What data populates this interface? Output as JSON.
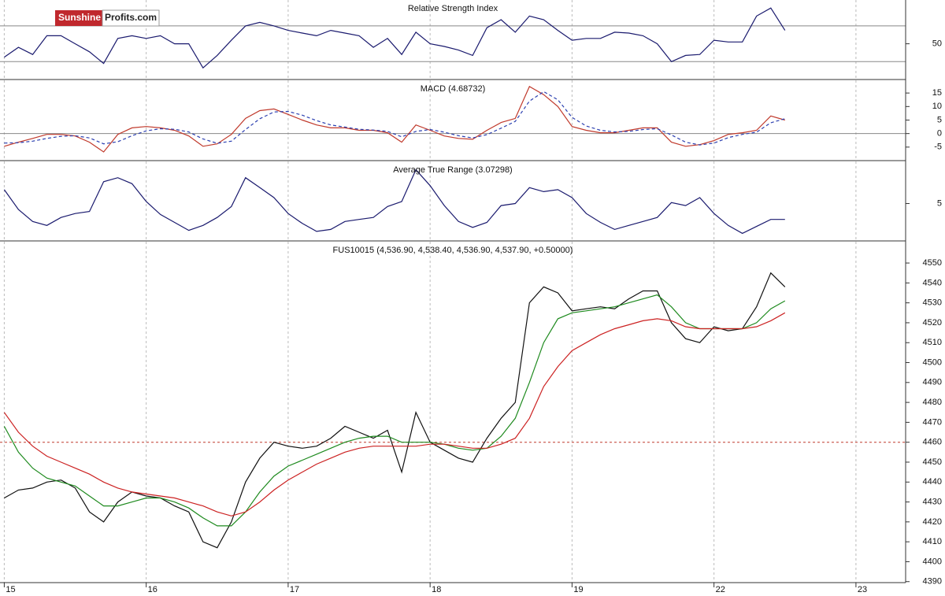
{
  "logo": {
    "part1": "Sunshine",
    "part2": "Profits.com"
  },
  "chart_data": [
    {
      "type": "line",
      "title": "Relative Strength Index",
      "x": [
        0,
        0.1,
        0.2,
        0.3,
        0.4,
        0.5,
        0.6,
        0.7,
        0.8,
        0.9,
        1,
        1.1,
        1.2,
        1.3,
        1.4,
        1.5,
        1.6,
        1.7,
        1.8,
        1.9,
        2,
        2.1,
        2.2,
        2.3,
        2.4,
        2.5,
        2.6,
        2.7,
        2.8,
        2.9,
        3,
        3.1,
        3.2,
        3.3,
        3.4,
        3.5,
        3.6,
        3.7,
        3.8,
        3.9,
        4,
        4.1,
        4.2,
        4.3,
        4.4,
        4.5,
        4.6,
        4.7,
        4.8,
        4.9,
        5,
        5.1,
        5.2,
        5.3,
        5.4,
        5.5
      ],
      "xlim": [
        -0.03,
        6.35
      ],
      "ylim": [
        10,
        99
      ],
      "yticks": [
        50
      ],
      "hlines": [
        30,
        70
      ],
      "hline_color": "#888888",
      "series": [
        {
          "color": "#1a1a6e",
          "values": [
            35,
            46,
            38,
            59,
            59,
            50,
            41,
            28,
            56,
            59,
            56,
            59,
            50,
            50,
            23,
            37,
            54,
            70,
            74,
            70,
            65,
            62,
            59,
            65,
            62,
            59,
            46,
            56,
            38,
            63,
            50,
            47,
            43,
            37,
            68,
            77,
            63,
            81,
            77,
            65,
            54,
            56,
            56,
            63,
            62,
            59,
            50,
            30,
            37,
            38,
            54,
            52,
            52,
            81,
            90,
            65
          ]
        }
      ]
    },
    {
      "type": "line",
      "title": "MACD (4.68732)",
      "x": [
        0,
        0.1,
        0.2,
        0.3,
        0.4,
        0.5,
        0.6,
        0.7,
        0.8,
        0.9,
        1,
        1.1,
        1.2,
        1.3,
        1.4,
        1.5,
        1.6,
        1.7,
        1.8,
        1.9,
        2,
        2.1,
        2.2,
        2.3,
        2.4,
        2.5,
        2.6,
        2.7,
        2.8,
        2.9,
        3,
        3.1,
        3.2,
        3.3,
        3.4,
        3.5,
        3.6,
        3.7,
        3.8,
        3.9,
        4,
        4.1,
        4.2,
        4.3,
        4.4,
        4.5,
        4.6,
        4.7,
        4.8,
        4.9,
        5,
        5.1,
        5.2,
        5.3,
        5.4,
        5.5
      ],
      "xlim": [
        -0.03,
        6.35
      ],
      "ylim": [
        -10,
        19.7
      ],
      "yticks": [
        -5,
        0,
        5,
        10,
        15
      ],
      "hlines": [
        0
      ],
      "hline_color": "#888888",
      "series": [
        {
          "color": "#c0392b",
          "values": [
            -4.7,
            -3.2,
            -1.8,
            -0.3,
            -0.3,
            -0.9,
            -3.2,
            -6.8,
            -0.3,
            2.1,
            2.6,
            2.1,
            1.2,
            -0.9,
            -4.7,
            -3.8,
            -0.3,
            5.6,
            8.5,
            9.1,
            7.1,
            5,
            3.2,
            2.1,
            2.1,
            1.2,
            1.2,
            0.3,
            -3.2,
            3.2,
            1.2,
            -0.9,
            -1.8,
            -2.1,
            1.2,
            4.1,
            5.6,
            17.4,
            14.4,
            10,
            2.6,
            1.2,
            0.3,
            0.3,
            1.2,
            2.1,
            2.1,
            -3.2,
            -4.7,
            -4.1,
            -2.6,
            -0.3,
            0.3,
            1.2,
            6.5,
            5
          ]
        },
        {
          "color": "#2b3fb0",
          "dash": true,
          "values": [
            -3.5,
            -3.4,
            -2.8,
            -1.8,
            -1,
            -0.8,
            -1.6,
            -3.8,
            -3,
            -0.8,
            1,
            1.8,
            1.6,
            0.6,
            -2,
            -3.6,
            -2.8,
            1.5,
            5.5,
            8,
            8.2,
            6.8,
            4.8,
            3.2,
            2.4,
            1.6,
            1.3,
            0.8,
            -1.2,
            0.8,
            1.5,
            0.5,
            -0.8,
            -1.6,
            -0.4,
            2,
            4.5,
            12,
            15.5,
            12.5,
            6,
            2.8,
            1.2,
            0.6,
            0.8,
            1.5,
            1.8,
            -0.5,
            -3.2,
            -4.2,
            -3.5,
            -1.5,
            -0.3,
            0.5,
            4,
            5.5
          ]
        }
      ]
    },
    {
      "type": "line",
      "title": "Average True Range (3.07298)",
      "x": [
        0,
        0.1,
        0.2,
        0.3,
        0.4,
        0.5,
        0.6,
        0.7,
        0.8,
        0.9,
        1,
        1.1,
        1.2,
        1.3,
        1.4,
        1.5,
        1.6,
        1.7,
        1.8,
        1.9,
        2,
        2.1,
        2.2,
        2.3,
        2.4,
        2.5,
        2.6,
        2.7,
        2.8,
        2.9,
        3,
        3.1,
        3.2,
        3.3,
        3.4,
        3.5,
        3.6,
        3.7,
        3.8,
        3.9,
        4,
        4.1,
        4.2,
        4.3,
        4.4,
        4.5,
        4.6,
        4.7,
        4.8,
        4.9,
        5,
        5.1,
        5.2,
        5.3,
        5.4,
        5.5
      ],
      "xlim": [
        -0.03,
        6.35
      ],
      "ylim": [
        1.24,
        9.24
      ],
      "yticks": [
        5
      ],
      "series": [
        {
          "color": "#1a1a6e",
          "values": [
            6.4,
            4.4,
            3.2,
            2.8,
            3.6,
            4,
            4.2,
            7.2,
            7.6,
            7,
            5.2,
            3.9,
            3.1,
            2.3,
            2.8,
            3.6,
            4.7,
            7.6,
            6.6,
            5.6,
            4,
            3,
            2.2,
            2.4,
            3.2,
            3.4,
            3.6,
            4.7,
            5.2,
            8.4,
            6.8,
            4.8,
            3.2,
            2.6,
            3.1,
            4.8,
            5,
            6.6,
            6.2,
            6.4,
            5.6,
            4,
            3.1,
            2.4,
            2.8,
            3.2,
            3.6,
            5.1,
            4.8,
            5.6,
            4,
            2.8,
            2,
            2.7,
            3.4,
            3.4
          ]
        }
      ]
    },
    {
      "type": "line",
      "title": "FUS10015 (4,536.90, 4,538.40, 4,536.90, 4,537.90, +0.50000)",
      "x": [
        0,
        0.1,
        0.2,
        0.3,
        0.4,
        0.5,
        0.6,
        0.7,
        0.8,
        0.9,
        1,
        1.1,
        1.2,
        1.3,
        1.4,
        1.5,
        1.6,
        1.7,
        1.8,
        1.9,
        2,
        2.1,
        2.2,
        2.3,
        2.4,
        2.5,
        2.6,
        2.7,
        2.8,
        2.9,
        3,
        3.1,
        3.2,
        3.3,
        3.4,
        3.5,
        3.6,
        3.7,
        3.8,
        3.9,
        4,
        4.1,
        4.2,
        4.3,
        4.4,
        4.5,
        4.6,
        4.7,
        4.8,
        4.9,
        5,
        5.1,
        5.2,
        5.3,
        5.4,
        5.5
      ],
      "xlim": [
        -0.03,
        6.35
      ],
      "xticks": [
        {
          "value": 0,
          "label": "15"
        },
        {
          "value": 1,
          "label": "16"
        },
        {
          "value": 2,
          "label": "17"
        },
        {
          "value": 3,
          "label": "18"
        },
        {
          "value": 4,
          "label": "19"
        },
        {
          "value": 5,
          "label": "22"
        },
        {
          "value": 6,
          "label": "23"
        }
      ],
      "ylim": [
        4389.5,
        4560.7
      ],
      "yticks": [
        4390,
        4400,
        4410,
        4420,
        4430,
        4440,
        4450,
        4460,
        4470,
        4480,
        4490,
        4500,
        4510,
        4520,
        4530,
        4540,
        4550
      ],
      "hlines": [
        4460
      ],
      "hline_color": "#c0392b",
      "hline_dash": true,
      "series": [
        {
          "color": "#111111",
          "values": [
            4432,
            4436,
            4437,
            4440,
            4441,
            4437,
            4425,
            4420,
            4430,
            4435,
            4433,
            4432,
            4428,
            4425,
            4410,
            4407,
            4420,
            4440,
            4452,
            4460,
            4458,
            4457,
            4458,
            4462,
            4468,
            4465,
            4462,
            4466,
            4445,
            4475,
            4460,
            4456,
            4452,
            4450,
            4462,
            4472,
            4480,
            4530,
            4538,
            4535,
            4526,
            4527,
            4528,
            4527,
            4532,
            4536,
            4536,
            4520,
            4512,
            4510,
            4518,
            4516,
            4517,
            4528,
            4545,
            4538
          ]
        },
        {
          "color": "#1e8a1e",
          "values": [
            4468,
            4455,
            4447,
            4442,
            4440,
            4438,
            4433,
            4428,
            4428,
            4430,
            4432,
            4432,
            4430,
            4427,
            4422,
            4418,
            4418,
            4425,
            4435,
            4443,
            4448,
            4451,
            4454,
            4457,
            4460,
            4462,
            4463,
            4463,
            4460,
            4460,
            4460,
            4459,
            4457,
            4456,
            4457,
            4463,
            4472,
            4490,
            4510,
            4522,
            4525,
            4526,
            4527,
            4528,
            4530,
            4532,
            4534,
            4528,
            4520,
            4517,
            4517,
            4517,
            4517,
            4520,
            4527,
            4531
          ]
        },
        {
          "color": "#cc2222",
          "values": [
            4475,
            4465,
            4458,
            4453,
            4450,
            4447,
            4444,
            4440,
            4437,
            4435,
            4434,
            4433,
            4432,
            4430,
            4428,
            4425,
            4423,
            4425,
            4430,
            4436,
            4441,
            4445,
            4449,
            4452,
            4455,
            4457,
            4458,
            4458,
            4458,
            4458,
            4459,
            4459,
            4458,
            4457,
            4457,
            4459,
            4462,
            4472,
            4488,
            4498,
            4506,
            4510,
            4514,
            4517,
            4519,
            4521,
            4522,
            4521,
            4518,
            4517,
            4517,
            4517,
            4517,
            4518,
            4521,
            4525
          ]
        }
      ]
    }
  ]
}
